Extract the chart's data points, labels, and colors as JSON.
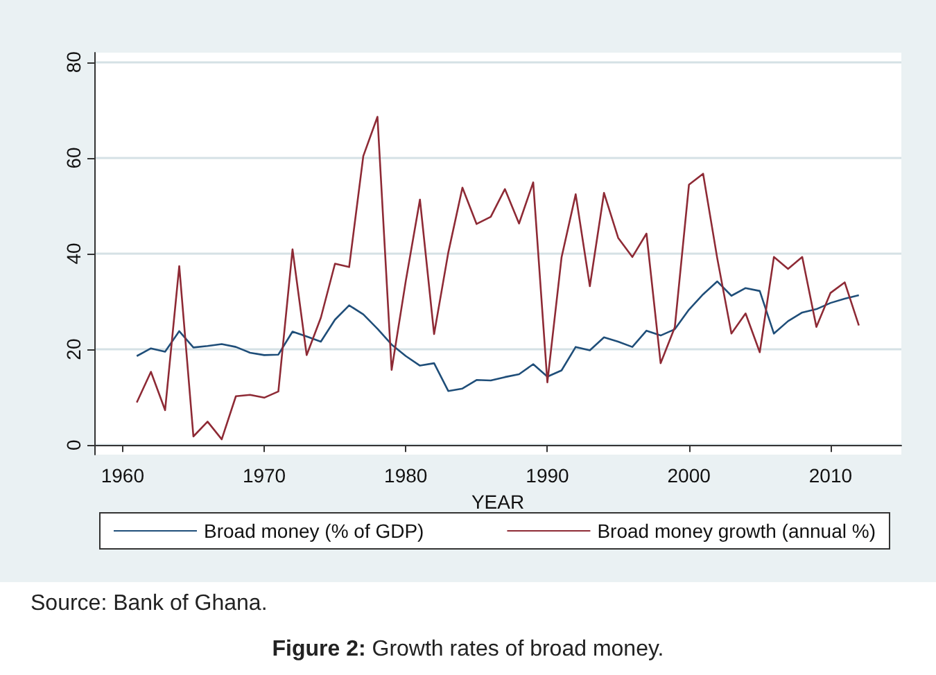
{
  "chart_data": {
    "type": "line",
    "title": "Figure 2: Growth rates of broad money.",
    "xlabel": "YEAR",
    "annotations": [
      "Source: Bank of Ghana."
    ],
    "x": [
      1961,
      1962,
      1963,
      1964,
      1965,
      1966,
      1967,
      1968,
      1969,
      1970,
      1971,
      1972,
      1973,
      1974,
      1975,
      1976,
      1977,
      1978,
      1979,
      1980,
      1981,
      1982,
      1983,
      1984,
      1985,
      1986,
      1987,
      1988,
      1989,
      1990,
      1991,
      1992,
      1993,
      1994,
      1995,
      1996,
      1997,
      1998,
      1999,
      2000,
      2001,
      2002,
      2003,
      2004,
      2005,
      2006,
      2007,
      2008,
      2009,
      2010,
      2011,
      2012
    ],
    "series": [
      {
        "name": "Broad money (% of GDP)",
        "color": "#1f4e79",
        "values": [
          18.6,
          20.2,
          19.5,
          23.8,
          20.4,
          20.7,
          21.1,
          20.5,
          19.3,
          18.8,
          18.9,
          23.7,
          22.7,
          21.6,
          26.2,
          29.2,
          27.3,
          24.3,
          21.0,
          18.6,
          16.6,
          17.1,
          11.3,
          11.8,
          13.6,
          13.5,
          14.2,
          14.8,
          16.9,
          14.3,
          15.6,
          20.5,
          19.8,
          22.5,
          21.6,
          20.5,
          23.9,
          22.9,
          24.2,
          28.3,
          31.5,
          34.2,
          31.2,
          32.8,
          32.2,
          23.3,
          25.9,
          27.7,
          28.4,
          29.7,
          30.6,
          31.3
        ]
      },
      {
        "name": "Broad money growth (annual %)",
        "color": "#8e2a35",
        "values": [
          8.9,
          15.3,
          7.3,
          37.4,
          1.8,
          4.9,
          1.2,
          10.2,
          10.5,
          9.9,
          11.2,
          40.9,
          18.8,
          26.6,
          37.9,
          37.2,
          60.4,
          68.6,
          15.7,
          34.3,
          51.3,
          23.2,
          40.2,
          53.8,
          46.2,
          47.7,
          53.5,
          46.3,
          54.9,
          13.1,
          39.2,
          52.4,
          33.2,
          52.7,
          43.3,
          39.3,
          44.2,
          17.1,
          24.6,
          54.4,
          56.7,
          39.0,
          23.3,
          27.5,
          19.4,
          39.3,
          36.8,
          39.3,
          24.7,
          31.8,
          34.0,
          25.0
        ]
      }
    ],
    "xlim": [
      1958,
      2015
    ],
    "xticks": [
      1960,
      1970,
      1980,
      1990,
      2000,
      2010
    ],
    "ylim": [
      -2,
      82
    ],
    "yticks": [
      0,
      20,
      40,
      60,
      80
    ],
    "grid": "y",
    "legend": "bottom",
    "line_style": "solid"
  }
}
